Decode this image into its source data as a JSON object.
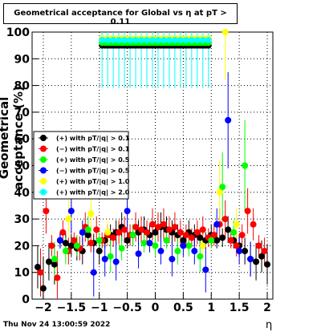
{
  "chart_data": {
    "type": "scatter",
    "title": "Geometrical acceptance for Global vs  η at pT > 0.11",
    "xlabel": "η",
    "ylabel": "Geometrical acceptance (%)",
    "xlim": [
      -2.2,
      2.1
    ],
    "ylim": [
      0,
      100
    ],
    "x_ticks": [
      -2,
      -1.5,
      -1,
      -0.5,
      0,
      0.5,
      1,
      1.5,
      2
    ],
    "x_tick_labels": [
      "−2",
      "−1.5",
      "−1",
      "−0.5",
      "0",
      "0.5",
      "1",
      "1.5",
      "2"
    ],
    "y_ticks": [
      0,
      10,
      20,
      30,
      40,
      50,
      60,
      70,
      80,
      90,
      100
    ],
    "y_tick_labels": [
      "0",
      "10",
      "20",
      "30",
      "40",
      "50",
      "60",
      "70",
      "80",
      "90",
      "100"
    ],
    "grid": true,
    "legend_position": "center-left",
    "series": [
      {
        "name": "(+) with pT/|q| > 0.1",
        "color": "#000000",
        "x": [
          -2.1,
          -2.0,
          -1.9,
          -1.8,
          -1.7,
          -1.6,
          -1.5,
          -1.4,
          -1.3,
          -1.2,
          -1.1,
          -1.0,
          -0.9,
          -0.8,
          -0.7,
          -0.6,
          -0.5,
          -0.4,
          -0.3,
          -0.2,
          -0.1,
          0.0,
          0.1,
          0.2,
          0.3,
          0.4,
          0.5,
          0.6,
          0.7,
          0.8,
          0.9,
          1.0,
          1.1,
          1.2,
          1.3,
          1.4,
          1.5,
          1.6,
          1.7,
          1.8,
          1.9,
          2.0
        ],
        "y": [
          12,
          4,
          14,
          13,
          22,
          21,
          20,
          19,
          18,
          24,
          21,
          18,
          22,
          24,
          25,
          27,
          22,
          24,
          25,
          26,
          24,
          25,
          27,
          26,
          25,
          24,
          22,
          25,
          24,
          23,
          22,
          24,
          22,
          23,
          26,
          22,
          20,
          18,
          15,
          14,
          16,
          13
        ]
      },
      {
        "name": "(−) with pT/|q| > 0.1",
        "color": "#ff0000",
        "x": [
          -2.05,
          -1.95,
          -1.85,
          -1.75,
          -1.65,
          -1.55,
          -1.45,
          -1.35,
          -1.25,
          -1.15,
          -1.05,
          -0.95,
          -0.85,
          -0.75,
          -0.65,
          -0.55,
          -0.45,
          -0.35,
          -0.25,
          -0.15,
          -0.05,
          0.05,
          0.15,
          0.25,
          0.35,
          0.45,
          0.55,
          0.65,
          0.75,
          0.85,
          0.95,
          1.05,
          1.15,
          1.25,
          1.35,
          1.45,
          1.55,
          1.65,
          1.75,
          1.85,
          1.95
        ],
        "y": [
          10,
          33,
          20,
          8,
          25,
          18,
          22,
          19,
          27,
          21,
          26,
          22,
          24,
          23,
          25,
          26,
          24,
          27,
          26,
          25,
          28,
          27,
          28,
          26,
          27,
          25,
          24,
          23,
          25,
          26,
          23,
          24,
          28,
          30,
          22,
          20,
          24,
          33,
          28,
          20,
          18
        ]
      },
      {
        "name": "(+) with pT/|q| > 0.5",
        "color": "#00ff00",
        "x": [
          -1.8,
          -1.6,
          -1.4,
          -1.2,
          -1.0,
          -0.8,
          -0.6,
          -0.4,
          -0.2,
          0.0,
          0.2,
          0.4,
          0.6,
          0.8,
          1.0,
          1.2,
          1.4,
          1.6
        ],
        "y": [
          15,
          18,
          20,
          26,
          22,
          16,
          19,
          24,
          21,
          20,
          22,
          18,
          20,
          16,
          22,
          42,
          25,
          50
        ]
      },
      {
        "name": "(−) with pT/|q| > 0.5",
        "color": "#0000ff",
        "x": [
          -1.7,
          -1.5,
          -1.3,
          -1.1,
          -0.9,
          -0.7,
          -0.5,
          -0.3,
          -0.1,
          0.1,
          0.3,
          0.5,
          0.7,
          0.9,
          1.1,
          1.3,
          1.5,
          1.7
        ],
        "y": [
          22,
          33,
          25,
          10,
          15,
          14,
          33,
          17,
          21,
          18,
          15,
          20,
          18,
          11,
          28,
          67,
          18,
          15
        ]
      },
      {
        "name": "(+) with pT/|q| > 1.0",
        "color": "#ffff00",
        "x": [
          -1.55,
          -1.15,
          -0.85,
          0.85,
          1.15,
          1.25,
          1.45
        ],
        "y": [
          30,
          32,
          25,
          20,
          40,
          100,
          28
        ]
      },
      {
        "name": "(+) with pT/|q| > 2.0",
        "color": "#00ffff",
        "x": [
          -0.95,
          -0.85,
          -0.75,
          -0.65,
          -0.55,
          -0.45,
          -0.35,
          -0.25,
          -0.15,
          -0.05,
          0.05,
          0.15,
          0.25,
          0.35,
          0.45,
          0.55,
          0.65,
          0.75,
          0.85,
          0.95
        ],
        "y": [
          97,
          97,
          97,
          97,
          97,
          97,
          97,
          97,
          97,
          97,
          97,
          97,
          97,
          97,
          97,
          97,
          97,
          97,
          97,
          97
        ]
      }
    ],
    "plateau_series": [
      {
        "color": "#000000",
        "y": 95
      },
      {
        "color": "#00ff00",
        "y": 96
      },
      {
        "color": "#ffff00",
        "y": 97.5
      }
    ]
  },
  "footer": {
    "timestamp": "Thu Nov 24 13:00:59 2022"
  }
}
